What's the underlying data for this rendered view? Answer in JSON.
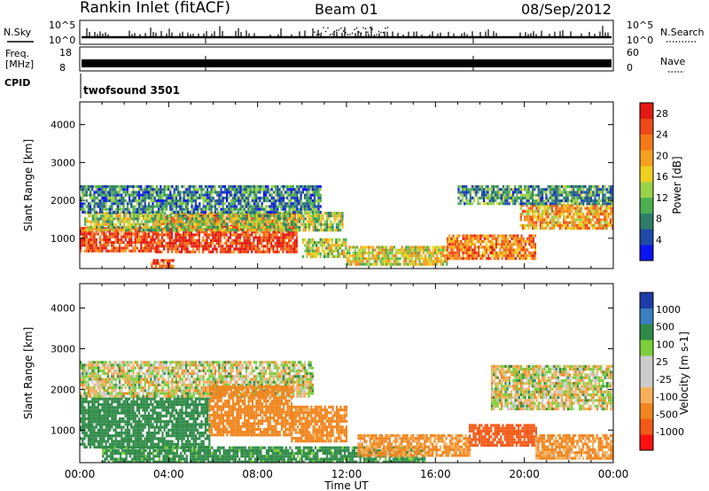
{
  "header": {
    "site": "Rankin Inlet (fitACF)",
    "beam": "Beam 01",
    "date": "08/Sep/2012"
  },
  "top_panels": {
    "nsky_label": "N.Sky",
    "nsky_ticks": [
      "10^5",
      "10^0"
    ],
    "nsearch_label": "N.Search",
    "nsearch_ticks": [
      "10^5",
      "10^0"
    ],
    "freq_label": "Freq.",
    "freq_unit": "[MHz]",
    "freq_ticks": [
      "18",
      "8"
    ],
    "nave_label": "Nave",
    "nave_ticks": [
      "60",
      "0"
    ],
    "cpid_label": "CPID",
    "cpid_value": "twofsound 3501"
  },
  "colors": {
    "power_scale": [
      "#0a14f0",
      "#1f4aa8",
      "#2e7d6a",
      "#4caf50",
      "#9ad14a",
      "#f0d020",
      "#f5a020",
      "#f47a1a",
      "#ee4a18",
      "#e31a12"
    ],
    "velocity_scale": [
      "#ff1010",
      "#f25a18",
      "#f0851e",
      "#f7b05a",
      "#cccccc",
      "#cccccc",
      "#7ccf3a",
      "#2f8a48",
      "#3b7fbf",
      "#1e3ca8"
    ]
  },
  "chart_data": [
    {
      "type": "heatmap",
      "name": "power",
      "xlabel": "",
      "ylabel": "Slant Range [km]",
      "xlim": [
        0,
        24
      ],
      "ylim": [
        200,
        4600
      ],
      "yticks": [
        1000,
        2000,
        3000,
        4000
      ],
      "colorbar_label": "Power [dB]",
      "colorbar_ticks": [
        "28",
        "24",
        "20",
        "16",
        "12",
        "8",
        "4"
      ],
      "colorbar_range": [
        0,
        30
      ],
      "regions": [
        {
          "x": [
            0.0,
            3.4
          ],
          "y": [
            700,
            1300
          ],
          "value": 26
        },
        {
          "x": [
            3.4,
            9.8
          ],
          "y": [
            650,
            1650
          ],
          "value": 27
        },
        {
          "x": [
            0.2,
            11.8
          ],
          "y": [
            1250,
            1700
          ],
          "value": 14
        },
        {
          "x": [
            0.0,
            10.8
          ],
          "y": [
            1700,
            2400
          ],
          "value": 8
        },
        {
          "x": [
            3.2,
            4.2
          ],
          "y": [
            200,
            450
          ],
          "value": 26
        },
        {
          "x": [
            10.0,
            12.0
          ],
          "y": [
            500,
            1000
          ],
          "value": 15
        },
        {
          "x": [
            12.0,
            16.5
          ],
          "y": [
            300,
            800
          ],
          "value": 16
        },
        {
          "x": [
            16.5,
            20.5
          ],
          "y": [
            500,
            1100
          ],
          "value": 22
        },
        {
          "x": [
            19.8,
            24.0
          ],
          "y": [
            1300,
            1900
          ],
          "value": 20
        },
        {
          "x": [
            17.0,
            24.0
          ],
          "y": [
            1900,
            2400
          ],
          "value": 9
        }
      ]
    },
    {
      "type": "heatmap",
      "name": "velocity",
      "xlabel": "Time UT",
      "ylabel": "Slant Range [km]",
      "xlim": [
        0,
        24
      ],
      "ylim": [
        200,
        4600
      ],
      "xticks": [
        "00:00",
        "04:00",
        "08:00",
        "12:00",
        "16:00",
        "20:00",
        "00:00"
      ],
      "yticks": [
        1000,
        2000,
        3000,
        4000
      ],
      "colorbar_label": "Velocity [m s-1]",
      "colorbar_ticks": [
        "1000",
        "500",
        "100",
        "25",
        "-25",
        "-100",
        "-500",
        "-1000"
      ],
      "regions": [
        {
          "x": [
            0.0,
            5.8
          ],
          "y": [
            600,
            1800
          ],
          "value": 300
        },
        {
          "x": [
            0.0,
            10.5
          ],
          "y": [
            1850,
            2700
          ],
          "value": 0
        },
        {
          "x": [
            5.8,
            9.5
          ],
          "y": [
            900,
            2100
          ],
          "value": -300
        },
        {
          "x": [
            9.5,
            12.0
          ],
          "y": [
            700,
            1600
          ],
          "value": -200
        },
        {
          "x": [
            1.0,
            15.5
          ],
          "y": [
            200,
            600
          ],
          "value": 200
        },
        {
          "x": [
            12.5,
            17.5
          ],
          "y": [
            400,
            900
          ],
          "value": -150
        },
        {
          "x": [
            17.5,
            20.5
          ],
          "y": [
            650,
            1150
          ],
          "value": -800
        },
        {
          "x": [
            18.5,
            24.0
          ],
          "y": [
            1550,
            2600
          ],
          "value": 0
        },
        {
          "x": [
            20.5,
            24.0
          ],
          "y": [
            300,
            900
          ],
          "value": -150
        }
      ]
    }
  ]
}
